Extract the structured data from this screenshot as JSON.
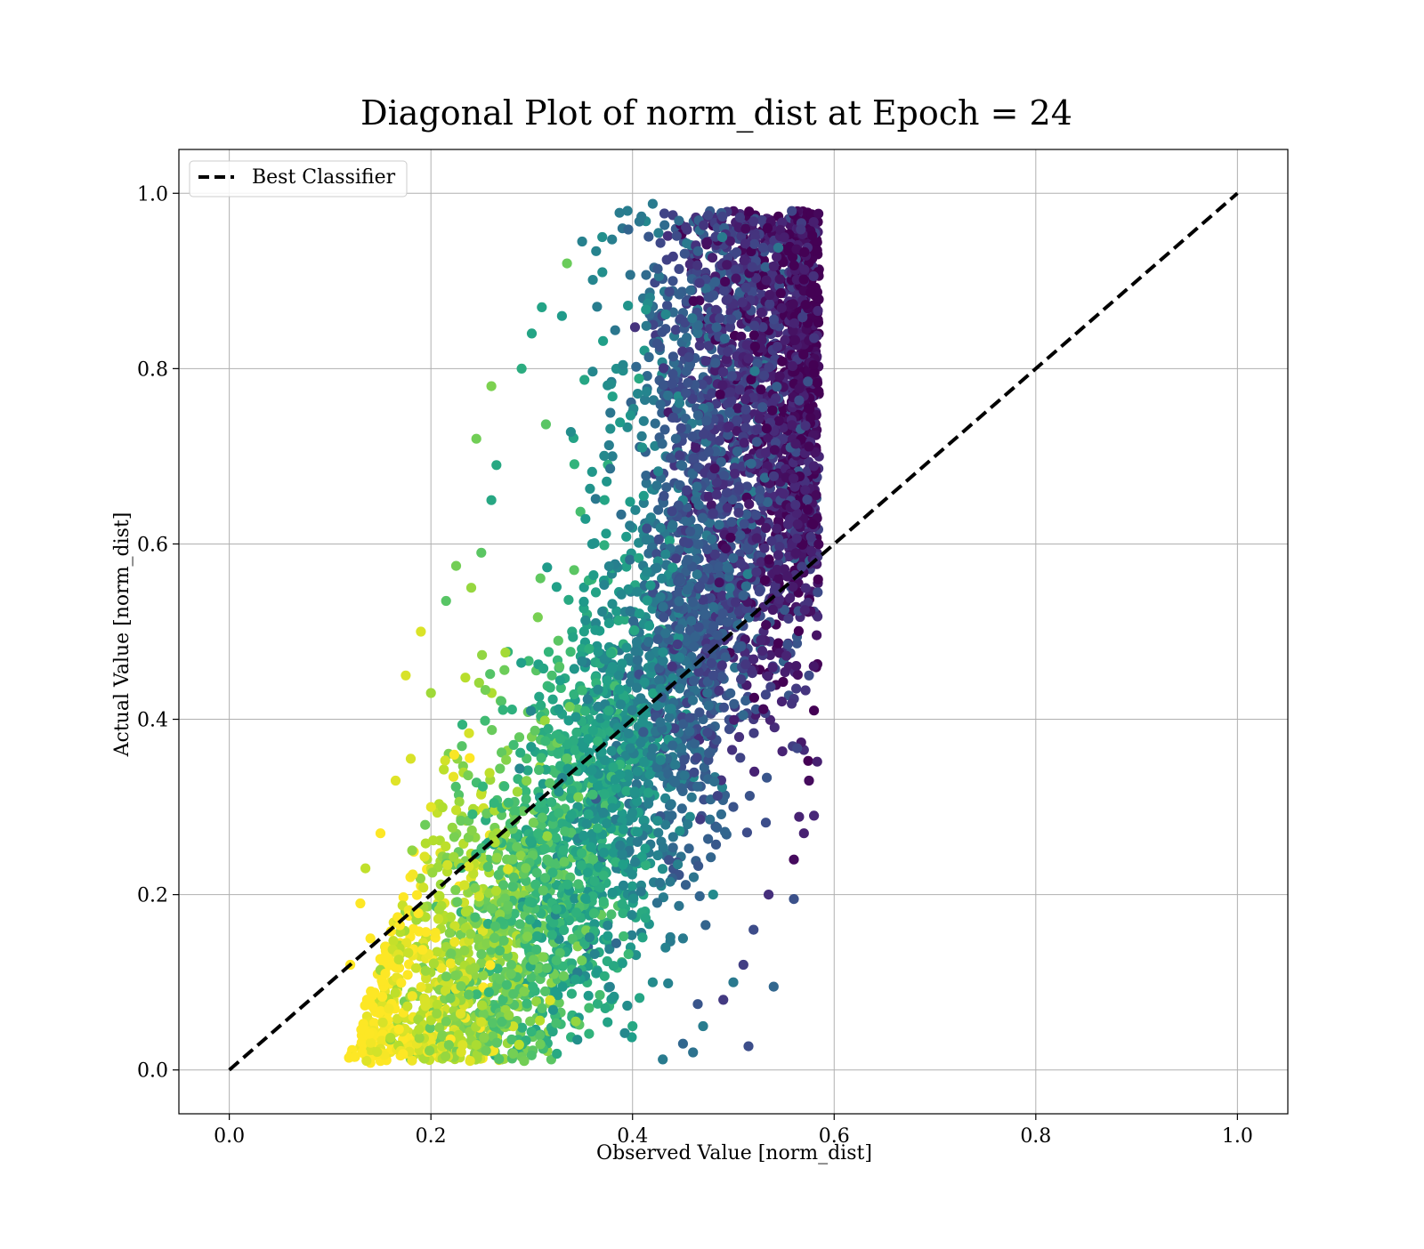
{
  "chart_data": {
    "type": "scatter",
    "title": "Diagonal Plot of norm_dist at Epoch = 24",
    "xlabel": "Observed Value [norm_dist]",
    "ylabel": "Actual Value [norm_dist]",
    "xlim": [
      -0.05,
      1.05
    ],
    "ylim": [
      -0.05,
      1.05
    ],
    "xticks": [
      0.0,
      0.2,
      0.4,
      0.6,
      0.8,
      1.0
    ],
    "yticks": [
      0.0,
      0.2,
      0.4,
      0.6,
      0.8,
      1.0
    ],
    "xtick_labels": [
      "0.0",
      "0.2",
      "0.4",
      "0.6",
      "0.8",
      "1.0"
    ],
    "ytick_labels": [
      "0.0",
      "0.2",
      "0.4",
      "0.6",
      "0.8",
      "1.0"
    ],
    "grid": true,
    "legend": {
      "placement": "top-left",
      "entries": [
        "Best Classifier"
      ]
    },
    "colormap": "viridis",
    "reference_line": {
      "label": "Best Classifier",
      "x": [
        0.0,
        1.0
      ],
      "y": [
        0.0,
        1.0
      ],
      "style": "dashed",
      "color": "#000000"
    },
    "point_cloud": {
      "note": "dense scatter; representative sample of points (observed, actual)",
      "points": [
        [
          0.14,
          0.008
        ],
        [
          0.27,
          0.012
        ],
        [
          0.295,
          0.022
        ],
        [
          0.22,
          0.022
        ],
        [
          0.515,
          0.027
        ],
        [
          0.17,
          0.027
        ],
        [
          0.43,
          0.012
        ],
        [
          0.46,
          0.02
        ],
        [
          0.12,
          0.12
        ],
        [
          0.13,
          0.19
        ],
        [
          0.135,
          0.23
        ],
        [
          0.15,
          0.27
        ],
        [
          0.165,
          0.33
        ],
        [
          0.18,
          0.355
        ],
        [
          0.19,
          0.5
        ],
        [
          0.175,
          0.45
        ],
        [
          0.2,
          0.43
        ],
        [
          0.215,
          0.535
        ],
        [
          0.225,
          0.575
        ],
        [
          0.24,
          0.55
        ],
        [
          0.25,
          0.59
        ],
        [
          0.26,
          0.65
        ],
        [
          0.265,
          0.69
        ],
        [
          0.245,
          0.72
        ],
        [
          0.26,
          0.78
        ],
        [
          0.29,
          0.8
        ],
        [
          0.3,
          0.84
        ],
        [
          0.31,
          0.87
        ],
        [
          0.33,
          0.86
        ],
        [
          0.335,
          0.92
        ],
        [
          0.35,
          0.945
        ],
        [
          0.37,
          0.95
        ],
        [
          0.39,
          0.96
        ],
        [
          0.395,
          0.98
        ],
        [
          0.42,
          0.988
        ],
        [
          0.44,
          0.975
        ],
        [
          0.465,
          0.96
        ],
        [
          0.48,
          0.965
        ],
        [
          0.51,
          0.97
        ],
        [
          0.5,
          0.93
        ],
        [
          0.55,
          0.935
        ],
        [
          0.56,
          0.86
        ],
        [
          0.57,
          0.86
        ],
        [
          0.575,
          0.8
        ],
        [
          0.565,
          0.72
        ],
        [
          0.58,
          0.65
        ],
        [
          0.57,
          0.6
        ],
        [
          0.575,
          0.54
        ],
        [
          0.575,
          0.45
        ],
        [
          0.58,
          0.41
        ],
        [
          0.57,
          0.365
        ],
        [
          0.575,
          0.33
        ],
        [
          0.58,
          0.29
        ],
        [
          0.57,
          0.27
        ],
        [
          0.56,
          0.24
        ],
        [
          0.56,
          0.195
        ],
        [
          0.54,
          0.095
        ],
        [
          0.49,
          0.08
        ],
        [
          0.47,
          0.05
        ],
        [
          0.45,
          0.03
        ],
        [
          0.535,
          0.2
        ],
        [
          0.52,
          0.16
        ],
        [
          0.51,
          0.12
        ],
        [
          0.5,
          0.1
        ],
        [
          0.18,
          0.04
        ],
        [
          0.2,
          0.06
        ],
        [
          0.15,
          0.07
        ],
        [
          0.16,
          0.1
        ],
        [
          0.17,
          0.14
        ],
        [
          0.14,
          0.15
        ],
        [
          0.21,
          0.1
        ],
        [
          0.19,
          0.21
        ],
        [
          0.23,
          0.18
        ],
        [
          0.25,
          0.25
        ],
        [
          0.28,
          0.3
        ],
        [
          0.3,
          0.38
        ],
        [
          0.32,
          0.45
        ],
        [
          0.34,
          0.5
        ],
        [
          0.36,
          0.6
        ],
        [
          0.38,
          0.7
        ],
        [
          0.4,
          0.75
        ],
        [
          0.42,
          0.85
        ],
        [
          0.44,
          0.9
        ],
        [
          0.46,
          0.85
        ],
        [
          0.48,
          0.75
        ],
        [
          0.5,
          0.7
        ],
        [
          0.52,
          0.6
        ],
        [
          0.53,
          0.5
        ],
        [
          0.52,
          0.4
        ],
        [
          0.5,
          0.3
        ],
        [
          0.48,
          0.2
        ],
        [
          0.45,
          0.15
        ],
        [
          0.42,
          0.1
        ],
        [
          0.4,
          0.05
        ],
        [
          0.38,
          0.08
        ],
        [
          0.36,
          0.12
        ],
        [
          0.34,
          0.06
        ],
        [
          0.32,
          0.09
        ],
        [
          0.3,
          0.15
        ],
        [
          0.28,
          0.1
        ],
        [
          0.26,
          0.12
        ],
        [
          0.24,
          0.08
        ],
        [
          0.22,
          0.14
        ],
        [
          0.35,
          0.25
        ],
        [
          0.37,
          0.35
        ],
        [
          0.39,
          0.45
        ],
        [
          0.41,
          0.55
        ],
        [
          0.43,
          0.65
        ],
        [
          0.45,
          0.7
        ],
        [
          0.47,
          0.6
        ],
        [
          0.49,
          0.5
        ],
        [
          0.51,
          0.45
        ],
        [
          0.47,
          0.4
        ],
        [
          0.44,
          0.35
        ],
        [
          0.41,
          0.3
        ],
        [
          0.38,
          0.2
        ],
        [
          0.33,
          0.2
        ],
        [
          0.31,
          0.28
        ],
        [
          0.29,
          0.2
        ],
        [
          0.27,
          0.18
        ],
        [
          0.43,
          0.5
        ],
        [
          0.45,
          0.55
        ],
        [
          0.42,
          0.6
        ],
        [
          0.44,
          0.78
        ],
        [
          0.46,
          0.68
        ]
      ]
    }
  }
}
